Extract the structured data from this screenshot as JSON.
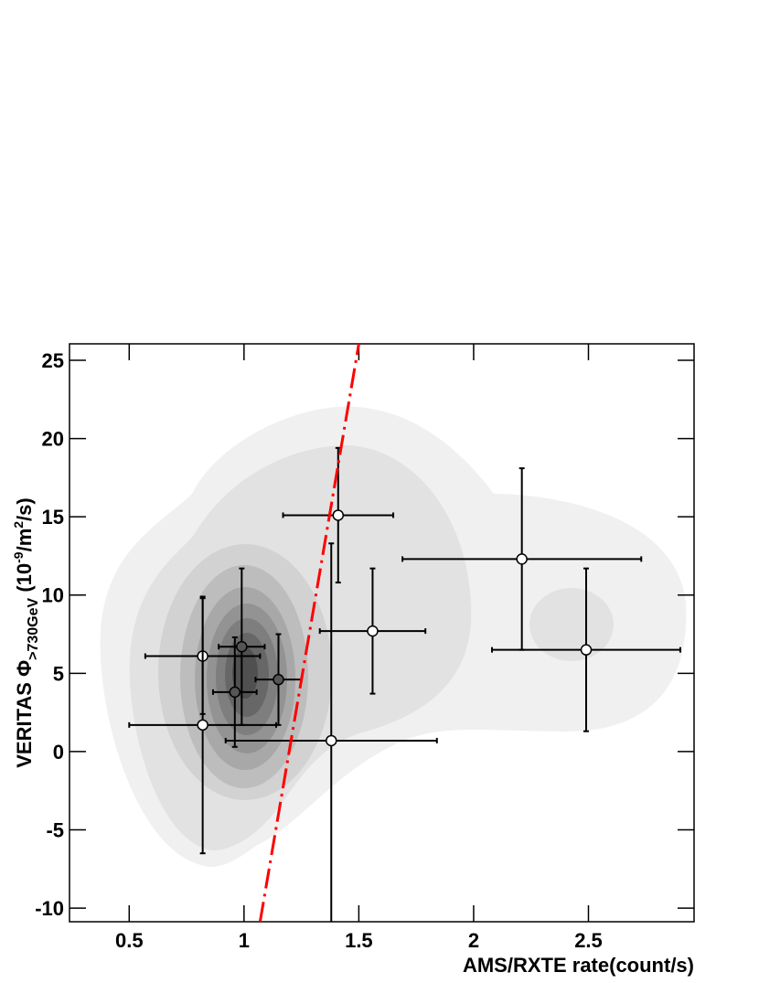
{
  "chart_data": {
    "type": "scatter",
    "x_label": "AMS/RXTE rate(count/s)",
    "y_label": [
      "VERITAS Φ",
      ">730GeV",
      " (10",
      "-9",
      "/m",
      "2",
      "/s)"
    ],
    "xlim": [
      0.24,
      2.96
    ],
    "ylim": [
      -10.87,
      26.05
    ],
    "xticks": [
      0.5,
      1,
      1.5,
      2,
      2.5
    ],
    "yticks": [
      -10,
      -5,
      0,
      5,
      10,
      15,
      20,
      25
    ],
    "series": [
      {
        "type": "errorbar",
        "x": [
          0.82,
          0.82,
          0.96,
          0.99,
          1.15,
          1.38,
          1.41,
          1.56,
          2.21,
          2.49
        ],
        "values": [
          6.1,
          1.7,
          3.8,
          6.7,
          4.6,
          0.7,
          15.1,
          7.7,
          12.3,
          6.5
        ],
        "xerr": [
          0.25,
          0.32,
          0.095,
          0.1,
          0.1,
          0.46,
          0.24,
          0.23,
          0.52,
          0.41
        ],
        "yerr": [
          3.7,
          8.2,
          3.5,
          5.0,
          2.9,
          12.6,
          4.3,
          4.0,
          5.8,
          5.2
        ],
        "color": "#000000",
        "marker_fill": [
          "#ffffff",
          "#ffffff",
          "#555555",
          "#555555",
          "#555555",
          "#ffffff",
          "#ffffff",
          "#ffffff",
          "#ffffff",
          "#ffffff"
        ]
      },
      {
        "type": "line",
        "x": [
          1.07,
          1.5
        ],
        "values": [
          -10.87,
          26.05
        ],
        "color": "#ff0000"
      }
    ]
  }
}
